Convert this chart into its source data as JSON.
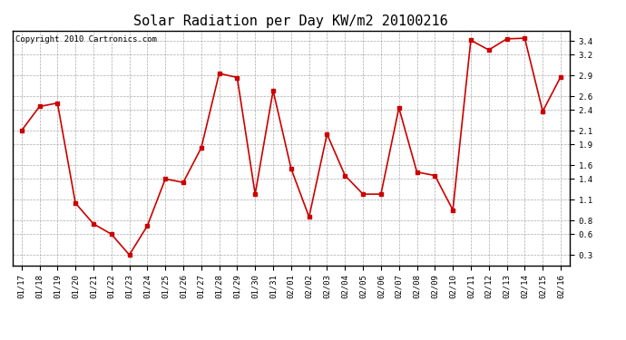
{
  "title": "Solar Radiation per Day KW/m2 20100216",
  "copyright": "Copyright 2010 Cartronics.com",
  "x_labels": [
    "01/17",
    "01/18",
    "01/19",
    "01/20",
    "01/21",
    "01/22",
    "01/23",
    "01/24",
    "01/25",
    "01/26",
    "01/27",
    "01/28",
    "01/29",
    "01/30",
    "01/31",
    "02/01",
    "02/02",
    "02/03",
    "02/04",
    "02/05",
    "02/06",
    "02/07",
    "02/08",
    "02/09",
    "02/10",
    "02/11",
    "02/12",
    "02/13",
    "02/14",
    "02/15",
    "02/16"
  ],
  "y_values": [
    2.1,
    2.45,
    2.5,
    1.05,
    0.75,
    0.6,
    0.3,
    0.72,
    1.4,
    1.35,
    1.85,
    2.93,
    2.87,
    1.18,
    2.68,
    1.55,
    0.85,
    2.05,
    1.45,
    1.18,
    1.18,
    2.43,
    1.5,
    1.45,
    0.95,
    3.41,
    3.27,
    3.43,
    3.44,
    2.38,
    2.88
  ],
  "y_ticks": [
    0.3,
    0.6,
    0.8,
    1.1,
    1.4,
    1.6,
    1.9,
    2.1,
    2.4,
    2.6,
    2.9,
    3.2,
    3.4
  ],
  "ylim": [
    0.15,
    3.55
  ],
  "line_color": "#cc0000",
  "marker": "s",
  "marker_size": 2.5,
  "line_width": 1.2,
  "bg_color": "#ffffff",
  "plot_bg_color": "#ffffff",
  "grid_color": "#aaaaaa",
  "title_fontsize": 11,
  "copyright_fontsize": 6.5,
  "tick_fontsize": 6.5,
  "border_color": "#000000"
}
